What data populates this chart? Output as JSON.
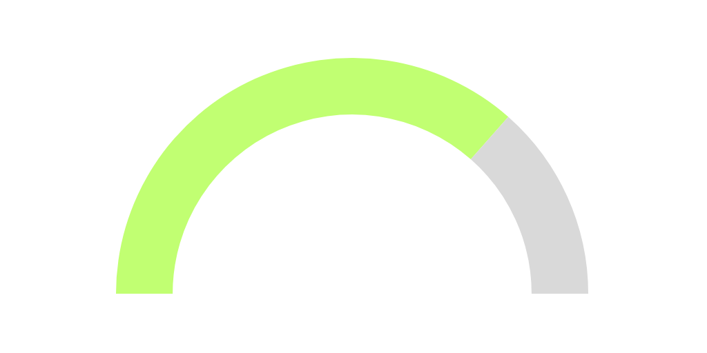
{
  "chart_data": {
    "type": "donut",
    "categories": [
      null,
      null
    ],
    "values": [
      73,
      27
    ],
    "colors": [
      "#c1ff72",
      "#d9d9d9"
    ],
    "legend": false
  }
}
